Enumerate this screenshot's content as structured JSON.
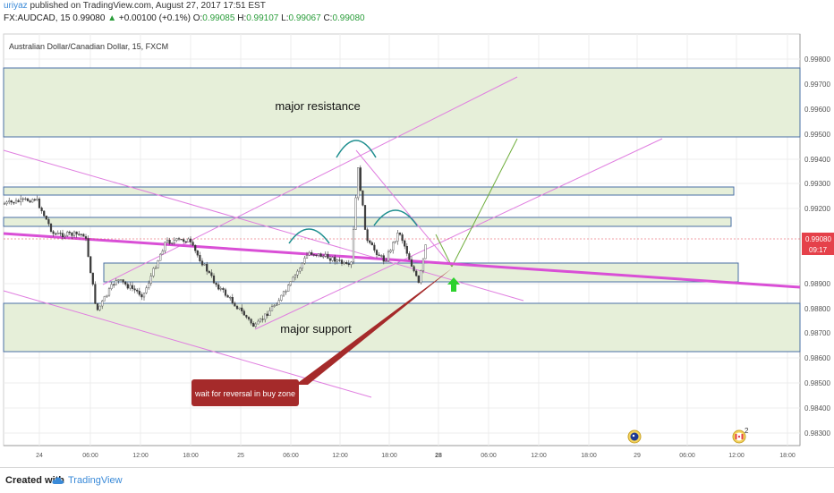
{
  "header": {
    "user": "uriyaz",
    "published": "published on TradingView.com, August 27, 2017 17:51 EST"
  },
  "quote": {
    "symbol": "FX:AUDCAD, 15",
    "price": "0.99080",
    "change": "+0.00100 (+0.1%)",
    "o_label": "O:",
    "o": "0.99085",
    "h_label": "H:",
    "h": "0.99107",
    "l_label": "L:",
    "l": "0.99067",
    "c_label": "C:",
    "c": "0.99080"
  },
  "chart_title": "Australian Dollar/Canadian Dollar, 15, FXCM",
  "price_axis": {
    "ticks": [
      "0.99800",
      "0.99700",
      "0.99600",
      "0.99500",
      "0.99400",
      "0.99300",
      "0.99200",
      "0.98900",
      "0.98800",
      "0.98700",
      "0.98600",
      "0.98500",
      "0.98400",
      "0.98300"
    ],
    "current_price": "0.99080",
    "countdown": "09:17",
    "color_current": "#e5414a"
  },
  "time_axis": {
    "ticks": [
      "24",
      "06:00",
      "12:00",
      "18:00",
      "25",
      "06:00",
      "12:00",
      "18:00",
      "28",
      "06:00",
      "12:00",
      "18:00",
      "29",
      "06:00",
      "12:00",
      "18:00"
    ]
  },
  "annotations": {
    "resistance": "major resistance",
    "support": "major support",
    "callout": "wait for reversal in buy zone"
  },
  "colors": {
    "zone_fill": "#e6efd9",
    "zone_border": "#4a6fa5",
    "trendline": "#d94fd6",
    "callout_bg": "#a52a2a",
    "arrow": "#2ed12e",
    "candle": "#3a3a3a"
  },
  "icons": {
    "flag1": "australia-flag-icon",
    "flag2": "canada-flag-icon",
    "flag2_count": "2"
  },
  "footer": {
    "created_with": "Created with",
    "brand": "TradingView"
  }
}
